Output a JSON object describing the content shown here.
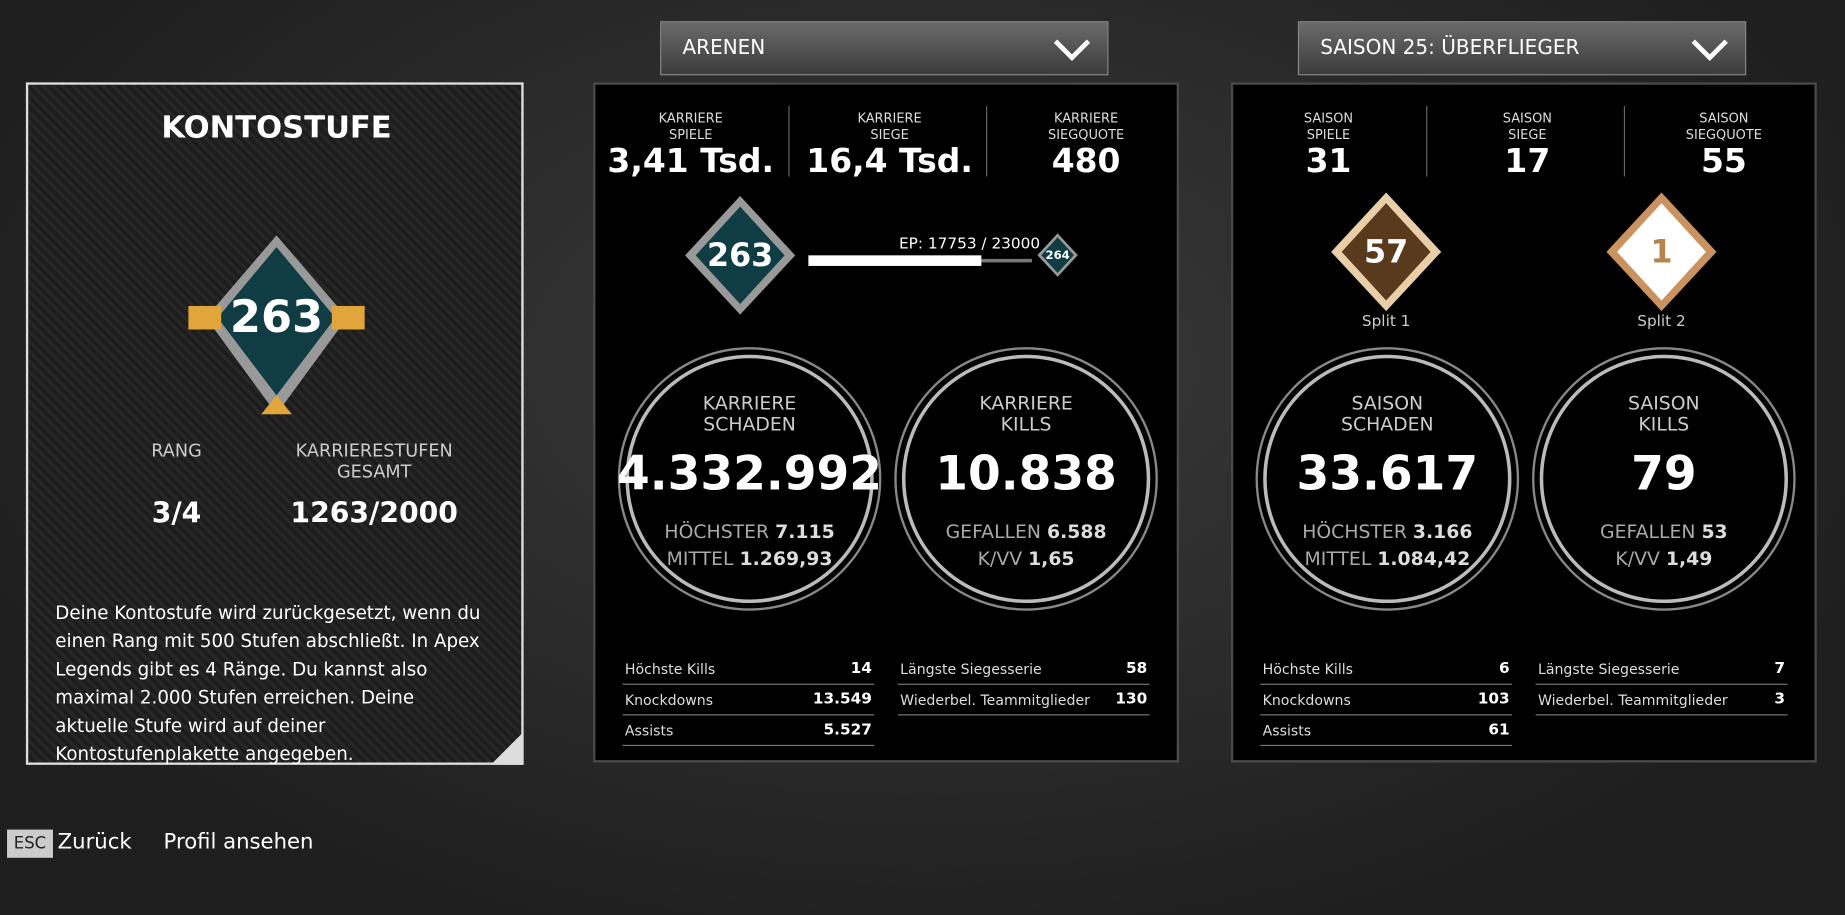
{
  "account": {
    "title": "KONTOSTUFE",
    "level": "263",
    "rank_label": "RANG",
    "rank_value": "3/4",
    "total_label": "KARRIERESTUFEN GESAMT",
    "total_value": "1263/2000",
    "description": "Deine Kontostufe wird zurückgesetzt, wenn du einen Rang mit 500 Stufen abschließt. In Apex Legends gibt es 4 Ränge. Du kannst also maximal 2.000 Stufen erreichen. Deine aktuelle Stufe wird auf deiner Kontostufenplakette angegeben."
  },
  "career": {
    "dropdown": "ARENEN",
    "top": [
      {
        "label": "KARRIERE SPIELE",
        "value": "3,41 Tsd."
      },
      {
        "label": "KARRIERE SIEGE",
        "value": "16,4 Tsd."
      },
      {
        "label": "KARRIERE SIEGQUOTE",
        "value": "480"
      }
    ],
    "badge": "263",
    "xp": "EP: 17753 / 23000",
    "next_level": "264",
    "circles": [
      {
        "title": "KARRIERE SCHADEN",
        "value": "4.332.992",
        "lines": [
          {
            "label": "HÖCHSTER",
            "value": "7.115"
          },
          {
            "label": "MITTEL",
            "value": "1.269,93"
          }
        ]
      },
      {
        "title": "KARRIERE KILLS",
        "value": "10.838",
        "lines": [
          {
            "label": "GEFALLEN",
            "value": "6.588"
          },
          {
            "label": "K/VV",
            "value": "1,65"
          }
        ]
      }
    ],
    "table_left": [
      {
        "label": "Höchste Kills",
        "value": "14"
      },
      {
        "label": "Knockdowns",
        "value": "13.549"
      },
      {
        "label": "Assists",
        "value": "5.527"
      }
    ],
    "table_right": [
      {
        "label": "Längste Siegesserie",
        "value": "58"
      },
      {
        "label": "Wiederbel. Teammitglieder",
        "value": "130"
      }
    ]
  },
  "season": {
    "dropdown": "SAISON 25: ÜBERFLIEGER",
    "top": [
      {
        "label": "SAISON SPIELE",
        "value": "31"
      },
      {
        "label": "SAISON SIEGE",
        "value": "17"
      },
      {
        "label": "SAISON SIEGQUOTE",
        "value": "55"
      }
    ],
    "splits": [
      {
        "value": "57",
        "label": "Split 1"
      },
      {
        "value": "1",
        "label": "Split 2"
      }
    ],
    "circles": [
      {
        "title": "SAISON SCHADEN",
        "value": "33.617",
        "lines": [
          {
            "label": "HÖCHSTER",
            "value": "3.166"
          },
          {
            "label": "MITTEL",
            "value": "1.084,42"
          }
        ]
      },
      {
        "title": "SAISON KILLS",
        "value": "79",
        "lines": [
          {
            "label": "GEFALLEN",
            "value": "53"
          },
          {
            "label": "K/VV",
            "value": "1,49"
          }
        ]
      }
    ],
    "table_left": [
      {
        "label": "Höchste Kills",
        "value": "6"
      },
      {
        "label": "Knockdowns",
        "value": "103"
      },
      {
        "label": "Assists",
        "value": "61"
      }
    ],
    "table_right": [
      {
        "label": "Längste Siegesserie",
        "value": "7"
      },
      {
        "label": "Wiederbel. Teammitglieder",
        "value": "3"
      }
    ]
  },
  "footer": {
    "key": "ESC",
    "back": "Zurück",
    "profile": "Profil ansehen"
  }
}
